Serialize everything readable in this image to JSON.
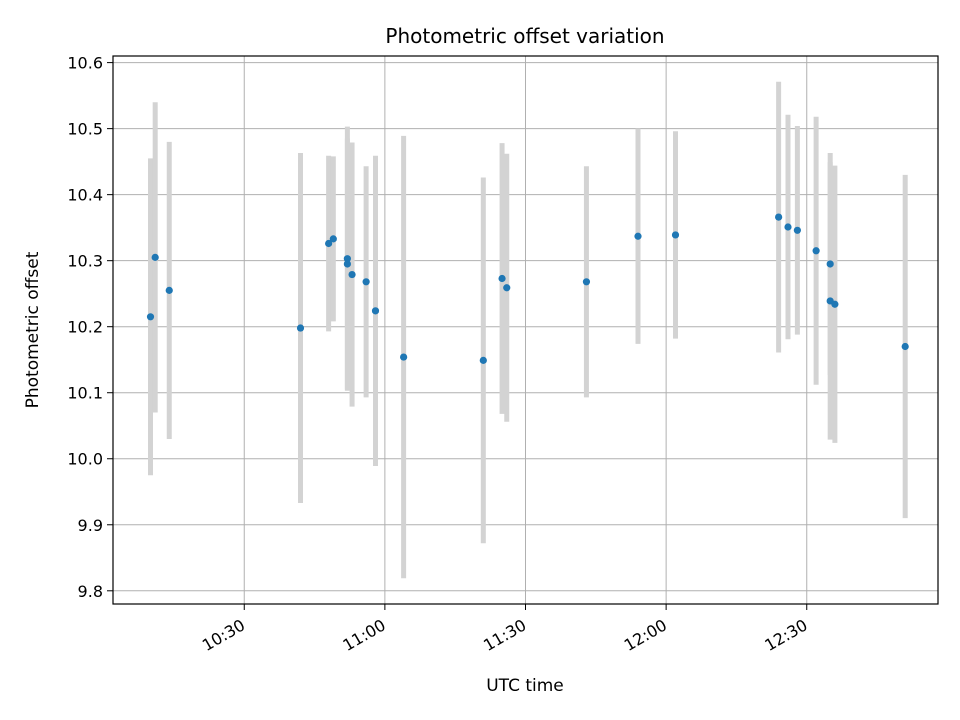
{
  "chart_data": {
    "type": "scatter",
    "title": "Photometric offset variation",
    "xlabel": "UTC time",
    "ylabel": "Photometric offset",
    "xlim": [
      "10:02",
      "12:58"
    ],
    "ylim": [
      9.78,
      10.61
    ],
    "x_ticks": [
      "10:30",
      "11:00",
      "11:30",
      "12:00",
      "12:30"
    ],
    "y_ticks": [
      9.8,
      9.9,
      10.0,
      10.1,
      10.2,
      10.3,
      10.4,
      10.5,
      10.6
    ],
    "grid": true,
    "point_color": "#1f77b4",
    "errorbar_color": "#d3d3d3",
    "points": [
      {
        "x": "10:10",
        "y": 10.215,
        "err": 0.24
      },
      {
        "x": "10:11",
        "y": 10.305,
        "err": 0.235
      },
      {
        "x": "10:14",
        "y": 10.255,
        "err": 0.225
      },
      {
        "x": "10:42",
        "y": 10.198,
        "err": 0.265
      },
      {
        "x": "10:48",
        "y": 10.326,
        "err": 0.133
      },
      {
        "x": "10:49",
        "y": 10.333,
        "err": 0.125
      },
      {
        "x": "10:52",
        "y": 10.295,
        "err": 0.19
      },
      {
        "x": "10:52",
        "y": 10.303,
        "err": 0.2
      },
      {
        "x": "10:53",
        "y": 10.279,
        "err": 0.2
      },
      {
        "x": "10:56",
        "y": 10.268,
        "err": 0.175
      },
      {
        "x": "10:58",
        "y": 10.224,
        "err": 0.235
      },
      {
        "x": "11:04",
        "y": 10.154,
        "err": 0.335
      },
      {
        "x": "11:21",
        "y": 10.149,
        "err": 0.277
      },
      {
        "x": "11:25",
        "y": 10.273,
        "err": 0.205
      },
      {
        "x": "11:26",
        "y": 10.259,
        "err": 0.203
      },
      {
        "x": "11:43",
        "y": 10.268,
        "err": 0.175
      },
      {
        "x": "11:54",
        "y": 10.337,
        "err": 0.163
      },
      {
        "x": "12:02",
        "y": 10.339,
        "err": 0.157
      },
      {
        "x": "12:24",
        "y": 10.366,
        "err": 0.205
      },
      {
        "x": "12:26",
        "y": 10.351,
        "err": 0.17
      },
      {
        "x": "12:28",
        "y": 10.346,
        "err": 0.158
      },
      {
        "x": "12:32",
        "y": 10.315,
        "err": 0.203
      },
      {
        "x": "12:35",
        "y": 10.295,
        "err": 0.168
      },
      {
        "x": "12:35",
        "y": 10.239,
        "err": 0.21
      },
      {
        "x": "12:36",
        "y": 10.234,
        "err": 0.21
      },
      {
        "x": "12:51",
        "y": 10.17,
        "err": 0.26
      }
    ]
  }
}
